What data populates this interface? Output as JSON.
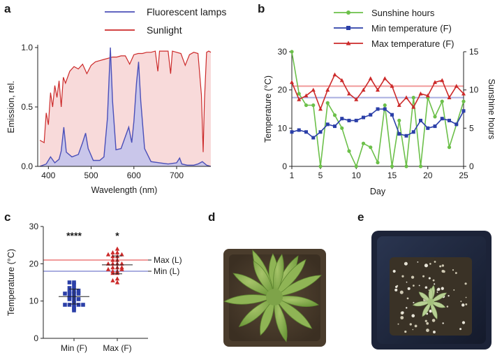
{
  "panels": {
    "a": "a",
    "b": "b",
    "c": "c",
    "d": "d",
    "e": "e"
  },
  "colors": {
    "fluorescent": "#4b4fb8",
    "fluorescent_fill": "#c9c6ea",
    "sunlight": "#cc2a2a",
    "sunlight_fill": "#f8dada",
    "sunshine": "#6cc04a",
    "min_temp": "#2b3fa8",
    "max_temp": "#cc2a2a",
    "max_line_light": "#f19a9a",
    "min_line_light": "#a9aee0"
  },
  "chart_data": [
    {
      "id": "a",
      "type": "area",
      "xlabel": "Wavelength (nm)",
      "ylabel": "Emission, rel.",
      "xlim": [
        375,
        780
      ],
      "ylim": [
        0,
        1.0
      ],
      "xticks": [
        400,
        500,
        600,
        700
      ],
      "yticks": [
        0.0,
        0.5,
        1.0
      ],
      "ytick_labels": [
        "0.0",
        "0.5",
        "1.0"
      ],
      "legend": [
        "Fluorescent lamps",
        "Sunlight"
      ],
      "series": [
        {
          "name": "Fluorescent lamps",
          "x": [
            380,
            395,
            405,
            415,
            425,
            430,
            436,
            442,
            455,
            470,
            480,
            487,
            493,
            505,
            520,
            530,
            538,
            545,
            550,
            558,
            570,
            580,
            588,
            595,
            600,
            606,
            611,
            616,
            625,
            640,
            660,
            680,
            700,
            707,
            712,
            725,
            740,
            750,
            760,
            770,
            780
          ],
          "y": [
            0.0,
            0.02,
            0.08,
            0.03,
            0.06,
            0.13,
            0.33,
            0.12,
            0.08,
            0.1,
            0.2,
            0.28,
            0.15,
            0.05,
            0.05,
            0.08,
            0.4,
            1.0,
            0.55,
            0.14,
            0.15,
            0.25,
            0.33,
            0.2,
            0.38,
            0.7,
            0.88,
            0.55,
            0.15,
            0.04,
            0.03,
            0.02,
            0.03,
            0.07,
            0.02,
            0.01,
            0.01,
            0.02,
            0.04,
            0.01,
            0.0
          ]
        },
        {
          "name": "Sunlight",
          "x": [
            380,
            390,
            395,
            400,
            405,
            410,
            415,
            420,
            425,
            430,
            435,
            440,
            450,
            460,
            470,
            480,
            490,
            500,
            510,
            520,
            530,
            540,
            550,
            560,
            570,
            580,
            590,
            600,
            610,
            620,
            630,
            640,
            650,
            656,
            660,
            670,
            680,
            686,
            690,
            700,
            710,
            720,
            730,
            740,
            750,
            758,
            762,
            765,
            770,
            775,
            780
          ],
          "y": [
            0.22,
            0.2,
            0.45,
            0.35,
            0.62,
            0.5,
            0.68,
            0.58,
            0.72,
            0.5,
            0.75,
            0.7,
            0.8,
            0.84,
            0.82,
            0.86,
            0.78,
            0.85,
            0.88,
            0.89,
            0.9,
            0.91,
            0.92,
            0.92,
            0.93,
            0.93,
            0.86,
            0.94,
            0.95,
            0.95,
            0.96,
            0.96,
            0.97,
            0.8,
            0.97,
            0.97,
            0.97,
            0.78,
            0.97,
            0.96,
            0.95,
            0.85,
            0.94,
            0.96,
            0.95,
            0.6,
            0.12,
            0.55,
            0.96,
            0.97,
            0.96
          ]
        }
      ]
    },
    {
      "id": "b",
      "type": "line",
      "xlabel": "Day",
      "ylabel": "Temperature (°C)",
      "y2label": "Sunshine hours",
      "x": [
        1,
        2,
        3,
        4,
        5,
        6,
        7,
        8,
        9,
        10,
        11,
        12,
        13,
        14,
        15,
        16,
        17,
        18,
        19,
        20,
        21,
        22,
        23,
        24,
        25
      ],
      "xticks": [
        1,
        5,
        10,
        15,
        20,
        25
      ],
      "ylim": [
        0,
        30
      ],
      "yticks": [
        0,
        10,
        20,
        30
      ],
      "y2lim": [
        0,
        15
      ],
      "y2ticks": [
        0,
        5,
        10,
        15
      ],
      "reference_lines": [
        {
          "y": 21,
          "color": "#f19a9a"
        },
        {
          "y": 18,
          "color": "#a9aee0"
        }
      ],
      "series": [
        {
          "name": "Sunshine hours",
          "axis": "right",
          "values": [
            15,
            9.5,
            8,
            8,
            0,
            8.3,
            6.7,
            5,
            2,
            0,
            3,
            2.5,
            0.5,
            8,
            0,
            6,
            0,
            9,
            0,
            9,
            6.5,
            8.5,
            2.5,
            5.5,
            8.5
          ]
        },
        {
          "name": "Min temperature (F)",
          "values": [
            9,
            9.5,
            9,
            7.5,
            9,
            11,
            10.5,
            12.5,
            12,
            12,
            12.8,
            13.5,
            15,
            15,
            13.5,
            8.5,
            8,
            9,
            12,
            10,
            10.5,
            12.5,
            12,
            11,
            14.5
          ]
        },
        {
          "name": "Max temperature (F)",
          "values": [
            22,
            17.5,
            18.5,
            20,
            15,
            20,
            24,
            22.5,
            19,
            17.5,
            20,
            23,
            20,
            23,
            21,
            16,
            18,
            15.5,
            19,
            18.5,
            22,
            22.5,
            18,
            21,
            19
          ]
        }
      ]
    },
    {
      "id": "c",
      "type": "scatter",
      "ylabel": "Temperature (°C)",
      "categories": [
        "Min (F)",
        "Max (F)"
      ],
      "ylim": [
        0,
        30
      ],
      "yticks": [
        0,
        10,
        20,
        30
      ],
      "reference_lines": [
        {
          "label": "Max (L)",
          "y": 21,
          "color": "#f19a9a"
        },
        {
          "label": "Min (L)",
          "y": 18,
          "color": "#a9aee0"
        }
      ],
      "significance": [
        "****",
        "*"
      ],
      "series": [
        {
          "name": "Min (F)",
          "mean": 11.2,
          "sd": 2.0,
          "values": [
            9.0,
            9.5,
            9.0,
            7.5,
            9.0,
            11.0,
            10.5,
            12.5,
            12.0,
            12.0,
            12.8,
            13.5,
            15.0,
            15.0,
            13.5,
            8.5,
            8.0,
            9.0,
            12.0,
            10.0,
            10.5,
            12.5,
            12.0,
            11.0,
            14.5
          ]
        },
        {
          "name": "Max (F)",
          "mean": 19.7,
          "sd": 2.4,
          "values": [
            22.0,
            17.5,
            18.5,
            20.0,
            15.0,
            20.0,
            24.0,
            22.5,
            19.0,
            17.5,
            20.0,
            23.0,
            20.0,
            23.0,
            21.0,
            16.0,
            18.0,
            15.5,
            19.0,
            18.5,
            22.0,
            22.5,
            18.0,
            21.0,
            19.0
          ]
        }
      ]
    }
  ]
}
